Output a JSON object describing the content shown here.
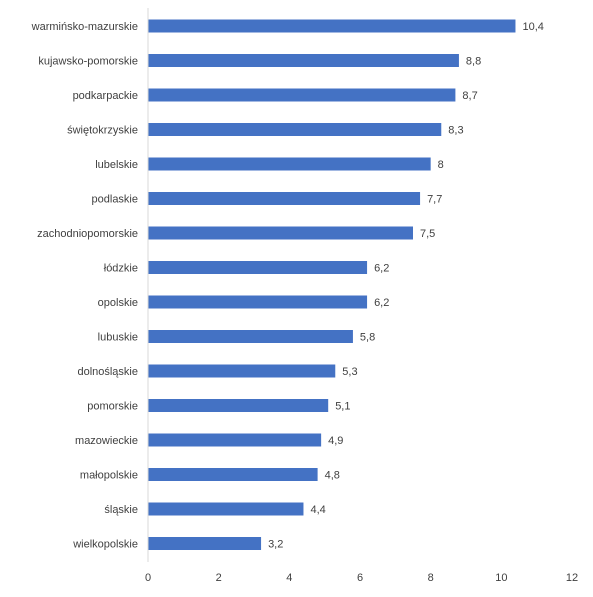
{
  "chart_data": {
    "type": "bar",
    "orientation": "horizontal",
    "title": "",
    "xlabel": "",
    "ylabel": "",
    "categories": [
      "warmińsko-mazurskie",
      "kujawsko-pomorskie",
      "podkarpackie",
      "świętokrzyskie",
      "lubelskie",
      "podlaskie",
      "zachodniopomorskie",
      "łódzkie",
      "opolskie",
      "lubuskie",
      "dolnośląskie",
      "pomorskie",
      "mazowieckie",
      "małopolskie",
      "śląskie",
      "wielkopolskie"
    ],
    "values": [
      10.4,
      8.8,
      8.7,
      8.3,
      8,
      7.7,
      7.5,
      6.2,
      6.2,
      5.8,
      5.3,
      5.1,
      4.9,
      4.8,
      4.4,
      3.2
    ],
    "value_labels": [
      "10,4",
      "8,8",
      "8,7",
      "8,3",
      "8",
      "7,7",
      "7,5",
      "6,2",
      "6,2",
      "5,8",
      "5,3",
      "5,1",
      "4,9",
      "4,8",
      "4,4",
      "3,2"
    ],
    "xlim": [
      0,
      12
    ],
    "xticks": [
      0,
      2,
      4,
      6,
      8,
      10,
      12
    ],
    "xtick_labels": [
      "0",
      "2",
      "4",
      "6",
      "8",
      "10",
      "12"
    ],
    "grid": false,
    "legend": "none",
    "bar_color": "#4472C4",
    "axis_color": "#D9D9D9",
    "text_color": "#404040"
  }
}
